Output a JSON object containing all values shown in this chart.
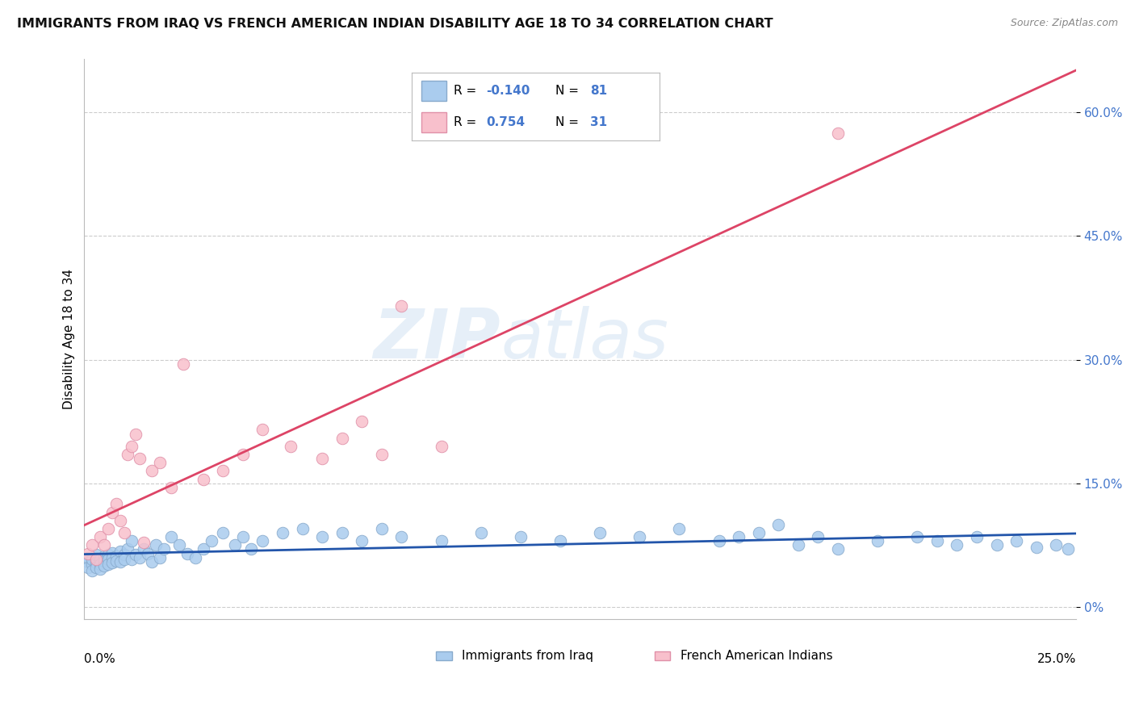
{
  "title": "IMMIGRANTS FROM IRAQ VS FRENCH AMERICAN INDIAN DISABILITY AGE 18 TO 34 CORRELATION CHART",
  "source": "Source: ZipAtlas.com",
  "ylabel": "Disability Age 18 to 34",
  "watermark": "ZIPatlas",
  "legend_R1_label": "R = ",
  "legend_R1_val": "-0.140",
  "legend_N1_label": "  N = ",
  "legend_N1_val": "81",
  "legend_R2_label": "R =  ",
  "legend_R2_val": "0.754",
  "legend_N2_label": "  N = ",
  "legend_N2_val": "31",
  "series1_color": "#aaccee",
  "series1_edge": "#88aacc",
  "series2_color": "#f8c0cc",
  "series2_edge": "#e090a8",
  "line1_color": "#2255aa",
  "line2_color": "#dd4466",
  "blue_text_color": "#4477cc",
  "xmin": 0.0,
  "xmax": 0.25,
  "ymin": -0.015,
  "ymax": 0.665,
  "ytick_vals": [
    0.0,
    0.15,
    0.3,
    0.45,
    0.6
  ],
  "ytick_labels": [
    "0%",
    "15.0%",
    "30.0%",
    "45.0%",
    "60.0%"
  ],
  "series1_x": [
    0.001,
    0.001,
    0.001,
    0.002,
    0.002,
    0.002,
    0.003,
    0.003,
    0.003,
    0.003,
    0.004,
    0.004,
    0.004,
    0.005,
    0.005,
    0.005,
    0.006,
    0.006,
    0.006,
    0.007,
    0.007,
    0.007,
    0.008,
    0.008,
    0.009,
    0.009,
    0.01,
    0.01,
    0.011,
    0.012,
    0.012,
    0.013,
    0.014,
    0.015,
    0.016,
    0.017,
    0.018,
    0.019,
    0.02,
    0.022,
    0.024,
    0.026,
    0.028,
    0.03,
    0.032,
    0.035,
    0.038,
    0.04,
    0.042,
    0.045,
    0.05,
    0.055,
    0.06,
    0.065,
    0.07,
    0.075,
    0.08,
    0.09,
    0.1,
    0.11,
    0.12,
    0.13,
    0.14,
    0.15,
    0.16,
    0.165,
    0.17,
    0.175,
    0.18,
    0.185,
    0.19,
    0.2,
    0.21,
    0.215,
    0.22,
    0.225,
    0.23,
    0.235,
    0.24,
    0.245,
    0.248
  ],
  "series1_y": [
    0.055,
    0.06,
    0.048,
    0.052,
    0.058,
    0.044,
    0.06,
    0.054,
    0.048,
    0.064,
    0.058,
    0.052,
    0.046,
    0.062,
    0.056,
    0.05,
    0.064,
    0.058,
    0.052,
    0.066,
    0.06,
    0.054,
    0.062,
    0.056,
    0.068,
    0.055,
    0.064,
    0.058,
    0.07,
    0.08,
    0.058,
    0.064,
    0.06,
    0.07,
    0.065,
    0.055,
    0.075,
    0.06,
    0.07,
    0.085,
    0.075,
    0.065,
    0.06,
    0.07,
    0.08,
    0.09,
    0.075,
    0.085,
    0.07,
    0.08,
    0.09,
    0.095,
    0.085,
    0.09,
    0.08,
    0.095,
    0.085,
    0.08,
    0.09,
    0.085,
    0.08,
    0.09,
    0.085,
    0.095,
    0.08,
    0.085,
    0.09,
    0.1,
    0.075,
    0.085,
    0.07,
    0.08,
    0.085,
    0.08,
    0.075,
    0.085,
    0.075,
    0.08,
    0.072,
    0.075,
    0.07
  ],
  "series2_x": [
    0.001,
    0.002,
    0.003,
    0.004,
    0.005,
    0.006,
    0.007,
    0.008,
    0.009,
    0.01,
    0.011,
    0.012,
    0.013,
    0.014,
    0.015,
    0.017,
    0.019,
    0.022,
    0.025,
    0.03,
    0.035,
    0.04,
    0.045,
    0.052,
    0.06,
    0.065,
    0.07,
    0.075,
    0.08,
    0.09,
    0.19
  ],
  "series2_y": [
    0.065,
    0.075,
    0.058,
    0.085,
    0.075,
    0.095,
    0.115,
    0.125,
    0.105,
    0.09,
    0.185,
    0.195,
    0.21,
    0.18,
    0.078,
    0.165,
    0.175,
    0.145,
    0.295,
    0.155,
    0.165,
    0.185,
    0.215,
    0.195,
    0.18,
    0.205,
    0.225,
    0.185,
    0.365,
    0.195,
    0.575
  ]
}
